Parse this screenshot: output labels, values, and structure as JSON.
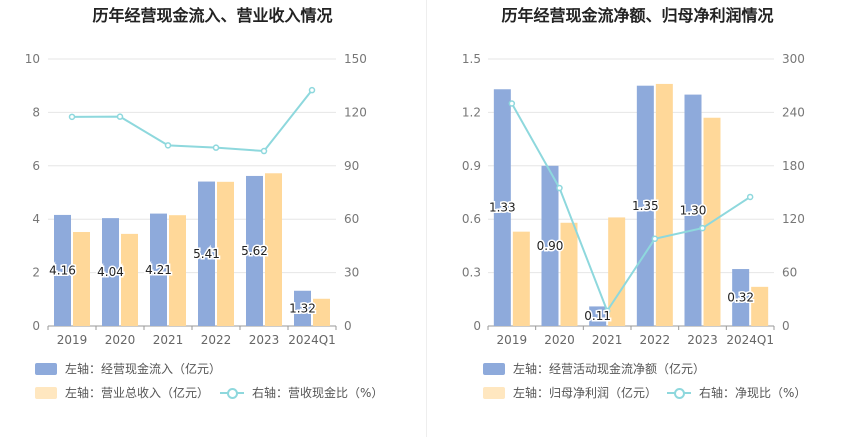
{
  "chart_data": [
    {
      "type": "bar",
      "title": "历年经营现金流入、营业收入情况",
      "categories": [
        "2019",
        "2020",
        "2021",
        "2022",
        "2023",
        "2024Q1"
      ],
      "left_axis": {
        "min": 0,
        "max": 10,
        "ticks": [
          "0",
          "2",
          "4",
          "6",
          "8",
          "10"
        ]
      },
      "right_axis": {
        "min": 0,
        "max": 150,
        "ticks": [
          "0",
          "30",
          "60",
          "90",
          "120",
          "150"
        ]
      },
      "series": [
        {
          "name": "左轴：经营现金流入（亿元）",
          "axis": "left",
          "kind": "bar",
          "color": "#8eaadb",
          "values": [
            4.16,
            4.04,
            4.21,
            5.41,
            5.62,
            1.32
          ],
          "labels": [
            "4.16",
            "4.04",
            "4.21",
            "5.41",
            "5.62",
            "1.32"
          ]
        },
        {
          "name": "左轴：营业总收入（亿元）",
          "axis": "left",
          "kind": "bar",
          "color": "#ffd899",
          "values": [
            3.52,
            3.45,
            4.15,
            5.4,
            5.72,
            1.02
          ]
        },
        {
          "name": "右轴：营收现金比（%）",
          "axis": "right",
          "kind": "line",
          "color": "#8ed8dd",
          "values": [
            117.5,
            117.6,
            101.5,
            100.2,
            98.3,
            132.5
          ]
        }
      ]
    },
    {
      "type": "bar",
      "title": "历年经营现金流净额、归母净利润情况",
      "categories": [
        "2019",
        "2020",
        "2021",
        "2022",
        "2023",
        "2024Q1"
      ],
      "left_axis": {
        "min": 0,
        "max": 1.5,
        "ticks": [
          "0",
          "0.3",
          "0.6",
          "0.9",
          "1.2",
          "1.5"
        ]
      },
      "right_axis": {
        "min": 0,
        "max": 300,
        "ticks": [
          "0",
          "60",
          "120",
          "180",
          "240",
          "300"
        ]
      },
      "series": [
        {
          "name": "左轴：经营活动现金流净额（亿元）",
          "axis": "left",
          "kind": "bar",
          "color": "#8eaadb",
          "values": [
            1.33,
            0.9,
            0.11,
            1.35,
            1.3,
            0.32
          ],
          "labels": [
            "1.33",
            "0.90",
            "0.11",
            "1.35",
            "1.30",
            "0.32"
          ]
        },
        {
          "name": "左轴：归母净利润（亿元）",
          "axis": "left",
          "kind": "bar",
          "color": "#ffd899",
          "values": [
            0.53,
            0.58,
            0.61,
            1.36,
            1.17,
            0.22
          ]
        },
        {
          "name": "右轴：净现比（%）",
          "axis": "right",
          "kind": "line",
          "color": "#8ed8dd",
          "values": [
            250,
            155,
            17,
            98,
            110,
            145
          ]
        }
      ]
    }
  ]
}
